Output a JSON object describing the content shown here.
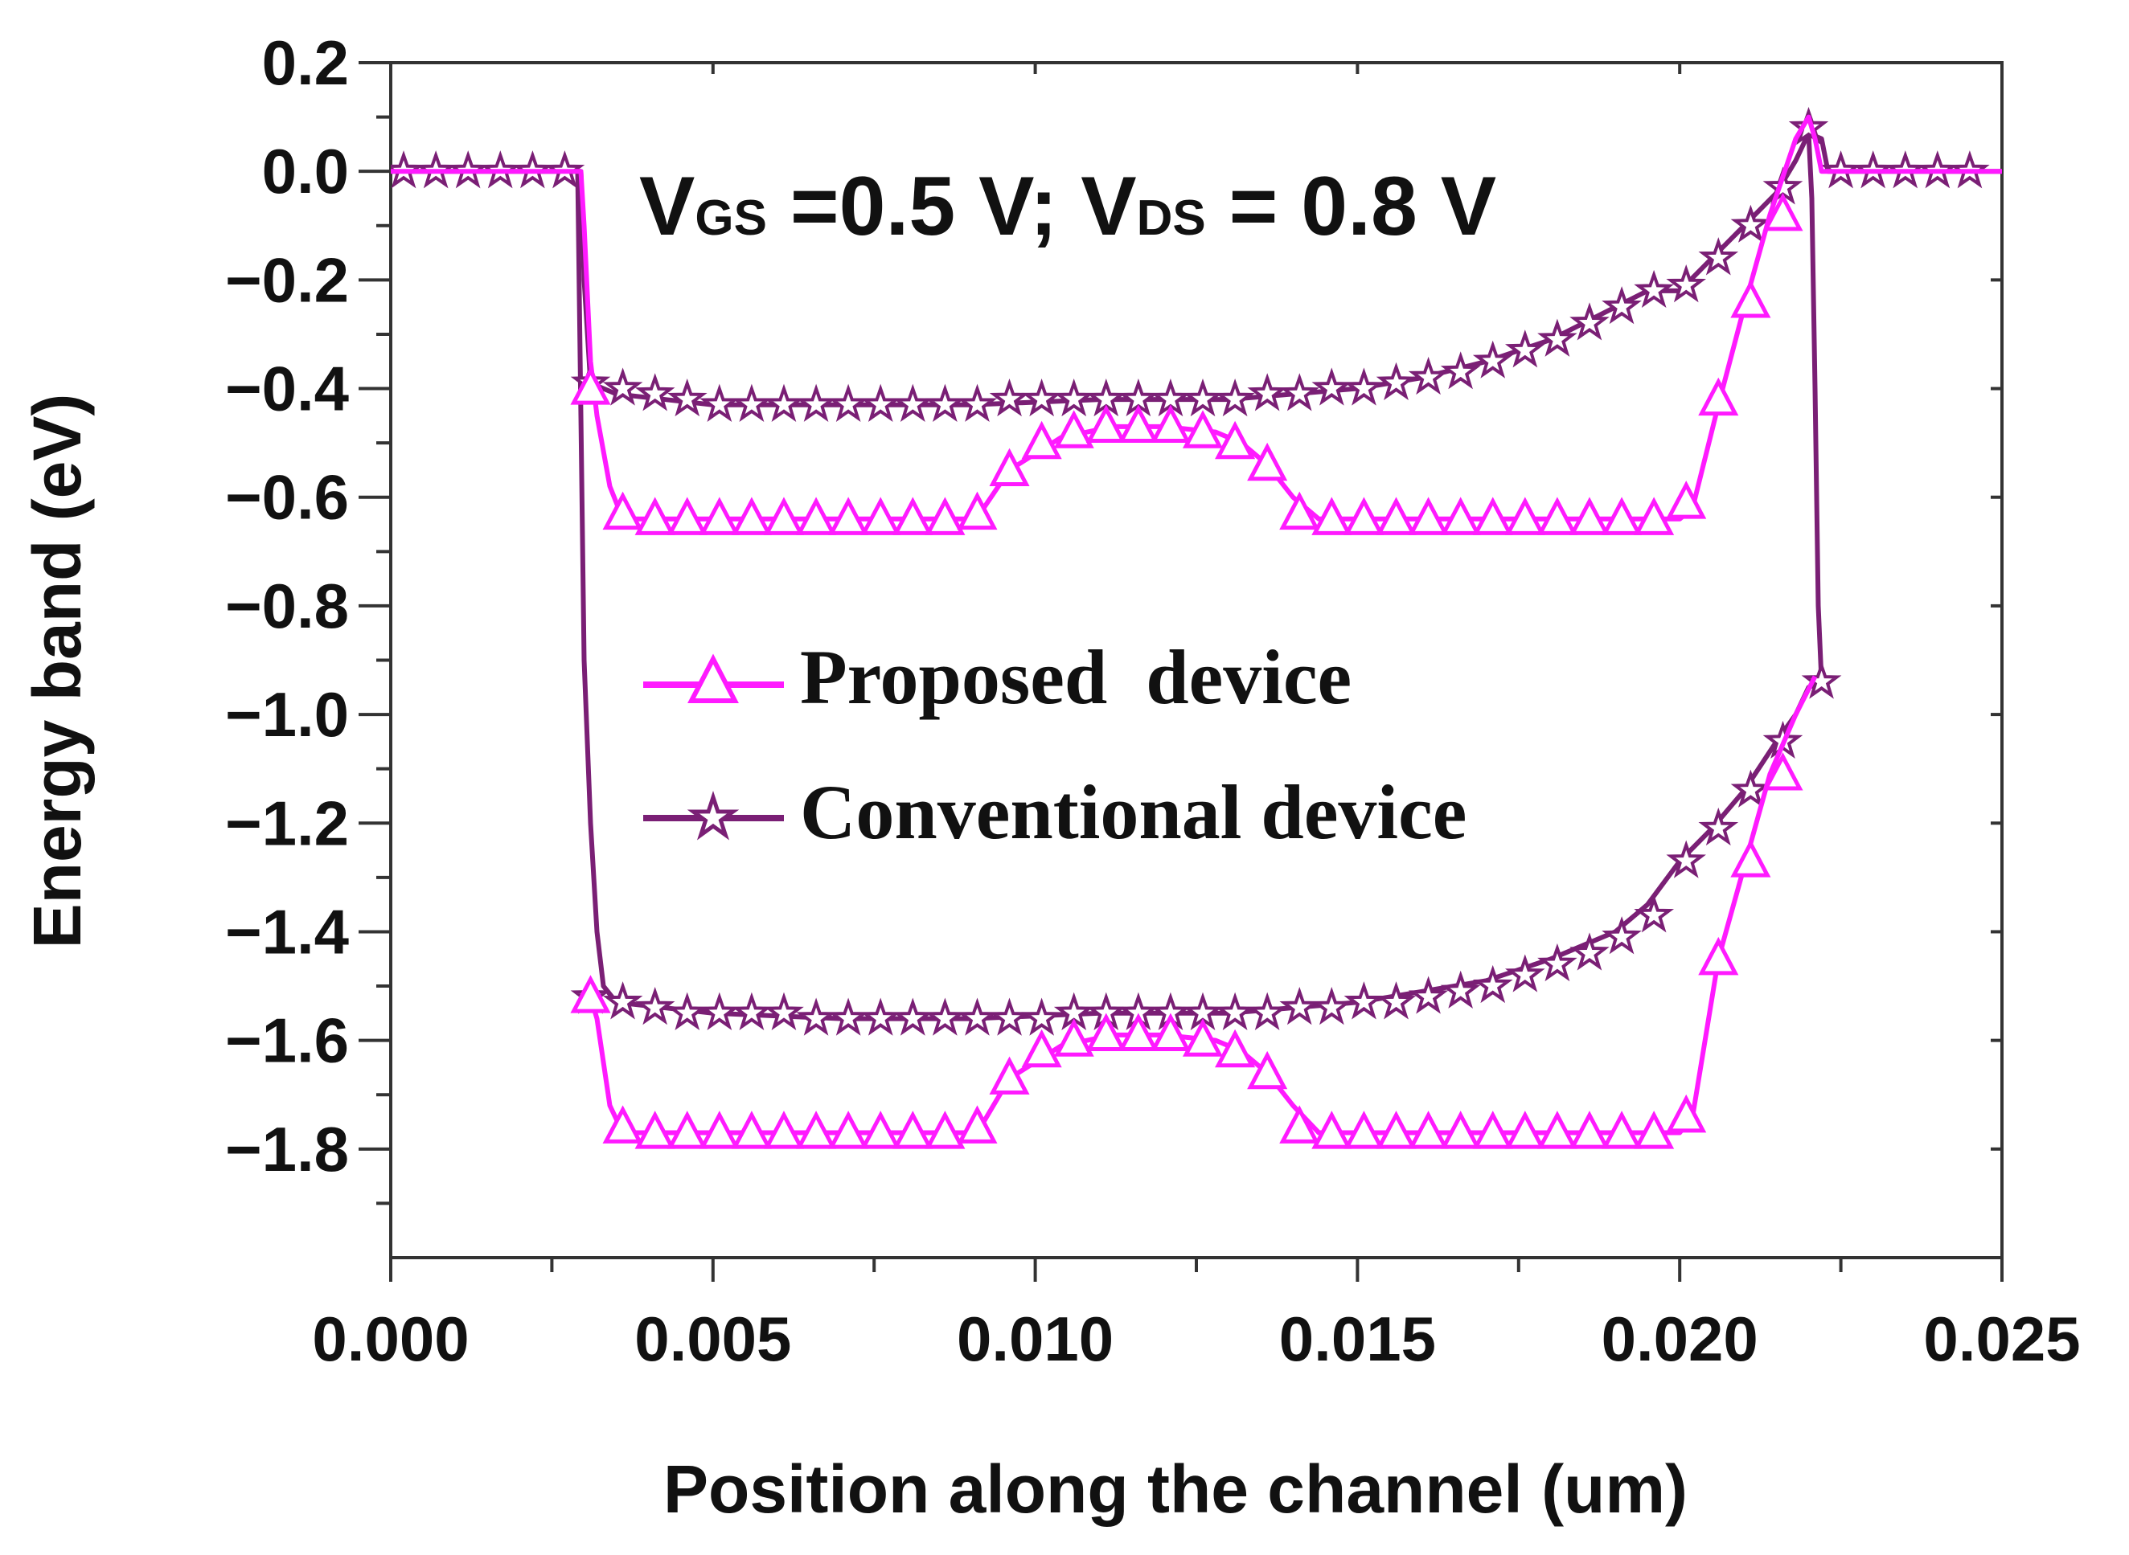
{
  "chart_data": {
    "type": "line",
    "title": "",
    "xlabel": "Position along the channel (um)",
    "ylabel": "Energy band (eV)",
    "xlim": [
      0,
      0.025
    ],
    "ylim": [
      -2.0,
      0.2
    ],
    "x_ticks": [
      "0.000",
      "0.005",
      "0.010",
      "0.015",
      "0.020",
      "0.025"
    ],
    "y_ticks": [
      "0.2",
      "0.0",
      "−0.2",
      "−0.4",
      "−0.6",
      "−0.8",
      "−1.0",
      "−1.2",
      "−1.4",
      "−1.6",
      "−1.8"
    ],
    "annotation": {
      "v1": "V",
      "v1_sub": "GS",
      "v1_val": " =0.5 V; ",
      "v2": "V",
      "v2_sub": "DS",
      "v2_val": " = 0.8 V"
    },
    "series": [
      {
        "name": "Proposed  device",
        "color": "#ff1aff",
        "marker": "triangle",
        "segments": [
          {
            "x": [
              0,
              0.0029,
              0.00295,
              0.003,
              0.0031,
              0.0032,
              0.0034,
              0.0036,
              0.009,
              0.0092,
              0.0096,
              0.0104,
              0.0112,
              0.012,
              0.0128,
              0.0132,
              0.0136,
              0.014,
              0.0144,
              0.02,
              0.0202,
              0.0206,
              0.021,
              0.0214,
              0.0218,
              0.022,
              0.0221,
              0.0222,
              0.0225,
              0.025
            ],
            "y": [
              0,
              0,
              0,
              -0.1,
              -0.35,
              -0.45,
              -0.58,
              -0.64,
              -0.64,
              -0.62,
              -0.55,
              -0.49,
              -0.47,
              -0.47,
              -0.48,
              -0.5,
              -0.54,
              -0.6,
              -0.64,
              -0.64,
              -0.62,
              -0.43,
              -0.25,
              -0.08,
              0.06,
              0.1,
              0.06,
              0.0,
              0,
              0
            ]
          },
          {
            "x": [
              0.003,
              0.0031,
              0.0032,
              0.0034,
              0.0036,
              0.009,
              0.0092,
              0.0096,
              0.0104,
              0.0112,
              0.012,
              0.0128,
              0.0132,
              0.0136,
              0.014,
              0.0144,
              0.02,
              0.0202,
              0.0206,
              0.021,
              0.0214,
              0.0218,
              0.0221
            ],
            "y": [
              -1.52,
              -1.52,
              -1.56,
              -1.72,
              -1.77,
              -1.77,
              -1.75,
              -1.67,
              -1.61,
              -1.59,
              -1.59,
              -1.6,
              -1.62,
              -1.66,
              -1.72,
              -1.77,
              -1.77,
              -1.74,
              -1.45,
              -1.28,
              -1.11,
              -1.0,
              -0.93
            ]
          }
        ],
        "markers": [
          {
            "x": [
              0.0031,
              0.0036,
              0.0041,
              0.0046,
              0.0051,
              0.0056,
              0.0061,
              0.0066,
              0.0071,
              0.0076,
              0.0081,
              0.0086,
              0.0091,
              0.0096,
              0.0101,
              0.0106,
              0.0111,
              0.0116,
              0.0121,
              0.0126,
              0.0131,
              0.0136,
              0.0141,
              0.0146,
              0.0151,
              0.0156,
              0.0161,
              0.0166,
              0.0171,
              0.0176,
              0.0181,
              0.0186,
              0.0191,
              0.0196,
              0.0201,
              0.0206,
              0.0211,
              0.0216
            ],
            "y": [
              -0.4,
              -0.63,
              -0.64,
              -0.64,
              -0.64,
              -0.64,
              -0.64,
              -0.64,
              -0.64,
              -0.64,
              -0.64,
              -0.64,
              -0.63,
              -0.55,
              -0.5,
              -0.48,
              -0.47,
              -0.47,
              -0.47,
              -0.48,
              -0.5,
              -0.54,
              -0.63,
              -0.64,
              -0.64,
              -0.64,
              -0.64,
              -0.64,
              -0.64,
              -0.64,
              -0.64,
              -0.64,
              -0.64,
              -0.64,
              -0.61,
              -0.42,
              -0.24,
              -0.08
            ]
          },
          {
            "x": [
              0.0031,
              0.0036,
              0.0041,
              0.0046,
              0.0051,
              0.0056,
              0.0061,
              0.0066,
              0.0071,
              0.0076,
              0.0081,
              0.0086,
              0.0091,
              0.0096,
              0.0101,
              0.0106,
              0.0111,
              0.0116,
              0.0121,
              0.0126,
              0.0131,
              0.0136,
              0.0141,
              0.0146,
              0.0151,
              0.0156,
              0.0161,
              0.0166,
              0.0171,
              0.0176,
              0.0181,
              0.0186,
              0.0191,
              0.0196,
              0.0201,
              0.0206,
              0.0211,
              0.0216
            ],
            "y": [
              -1.52,
              -1.76,
              -1.77,
              -1.77,
              -1.77,
              -1.77,
              -1.77,
              -1.77,
              -1.77,
              -1.77,
              -1.77,
              -1.77,
              -1.76,
              -1.67,
              -1.62,
              -1.6,
              -1.59,
              -1.59,
              -1.59,
              -1.6,
              -1.62,
              -1.66,
              -1.76,
              -1.77,
              -1.77,
              -1.77,
              -1.77,
              -1.77,
              -1.77,
              -1.77,
              -1.77,
              -1.77,
              -1.77,
              -1.77,
              -1.74,
              -1.45,
              -1.27,
              -1.11
            ]
          }
        ]
      },
      {
        "name": "Conventional device",
        "color": "#7a1f75",
        "marker": "star",
        "segments": [
          {
            "x": [
              0,
              0.0029,
              0.00295,
              0.003,
              0.0031,
              0.0035,
              0.005,
              0.007,
              0.009,
              0.011,
              0.013,
              0.015,
              0.016,
              0.017,
              0.018,
              0.019,
              0.0195,
              0.02,
              0.0205,
              0.021,
              0.0215,
              0.0218,
              0.022,
              0.0222,
              0.0223,
              0.0225,
              0.025
            ],
            "y": [
              0,
              0,
              0,
              -0.2,
              -0.39,
              -0.41,
              -0.43,
              -0.43,
              -0.43,
              -0.42,
              -0.42,
              -0.4,
              -0.38,
              -0.35,
              -0.31,
              -0.25,
              -0.22,
              -0.22,
              -0.16,
              -0.1,
              -0.04,
              0.02,
              0.07,
              0.06,
              0.0,
              0,
              0
            ]
          },
          {
            "x": [
              0.0029,
              0.00295,
              0.003,
              0.0031,
              0.0032,
              0.0033,
              0.0035,
              0.005,
              0.007,
              0.009,
              0.011,
              0.013,
              0.015,
              0.016,
              0.017,
              0.018,
              0.019,
              0.0195,
              0.02,
              0.0205,
              0.021,
              0.0215,
              0.0218,
              0.022,
              0.0222
            ],
            "y": [
              0,
              -0.45,
              -0.9,
              -1.2,
              -1.4,
              -1.5,
              -1.53,
              -1.55,
              -1.56,
              -1.56,
              -1.55,
              -1.55,
              -1.53,
              -1.51,
              -1.49,
              -1.45,
              -1.4,
              -1.35,
              -1.27,
              -1.21,
              -1.14,
              -1.05,
              -1.0,
              -0.95,
              -0.94
            ]
          },
          {
            "x": [
              0.022,
              0.02205,
              0.0221,
              0.02215,
              0.0222
            ],
            "y": [
              0.07,
              -0.05,
              -0.4,
              -0.8,
              -0.94
            ]
          }
        ],
        "markers": [
          {
            "x": [
              0.0002,
              0.0007,
              0.0012,
              0.0017,
              0.0022,
              0.0027,
              0.0031,
              0.0036,
              0.0041,
              0.0046,
              0.0051,
              0.0056,
              0.0061,
              0.0066,
              0.0071,
              0.0076,
              0.0081,
              0.0086,
              0.0091,
              0.0096,
              0.0101,
              0.0106,
              0.0111,
              0.0116,
              0.0121,
              0.0126,
              0.0131,
              0.0136,
              0.0141,
              0.0146,
              0.0151,
              0.0156,
              0.0161,
              0.0166,
              0.0171,
              0.0176,
              0.0181,
              0.0186,
              0.0191,
              0.0196,
              0.0201,
              0.0206,
              0.0211,
              0.0216,
              0.022,
              0.0225,
              0.023,
              0.0235,
              0.024,
              0.0245
            ],
            "y": [
              0,
              0,
              0,
              0,
              0,
              0,
              -0.39,
              -0.4,
              -0.41,
              -0.42,
              -0.43,
              -0.43,
              -0.43,
              -0.43,
              -0.43,
              -0.43,
              -0.43,
              -0.43,
              -0.43,
              -0.42,
              -0.42,
              -0.42,
              -0.42,
              -0.42,
              -0.42,
              -0.42,
              -0.42,
              -0.41,
              -0.41,
              -0.4,
              -0.4,
              -0.39,
              -0.38,
              -0.37,
              -0.35,
              -0.33,
              -0.31,
              -0.28,
              -0.25,
              -0.22,
              -0.21,
              -0.16,
              -0.1,
              -0.03,
              0.08,
              0,
              0,
              0,
              0,
              0
            ]
          },
          {
            "x": [
              0.0031,
              0.0036,
              0.0041,
              0.0046,
              0.0051,
              0.0056,
              0.0061,
              0.0066,
              0.0071,
              0.0076,
              0.0081,
              0.0086,
              0.0091,
              0.0096,
              0.0101,
              0.0106,
              0.0111,
              0.0116,
              0.0121,
              0.0126,
              0.0131,
              0.0136,
              0.0141,
              0.0146,
              0.0151,
              0.0156,
              0.0161,
              0.0166,
              0.0171,
              0.0176,
              0.0181,
              0.0186,
              0.0191,
              0.0196,
              0.0201,
              0.0206,
              0.0211,
              0.0216,
              0.0222
            ],
            "y": [
              -1.52,
              -1.53,
              -1.54,
              -1.55,
              -1.55,
              -1.55,
              -1.55,
              -1.56,
              -1.56,
              -1.56,
              -1.56,
              -1.56,
              -1.56,
              -1.56,
              -1.56,
              -1.55,
              -1.55,
              -1.55,
              -1.55,
              -1.55,
              -1.55,
              -1.55,
              -1.54,
              -1.54,
              -1.53,
              -1.53,
              -1.52,
              -1.51,
              -1.5,
              -1.48,
              -1.46,
              -1.44,
              -1.41,
              -1.37,
              -1.27,
              -1.21,
              -1.14,
              -1.05,
              -0.94
            ]
          }
        ]
      }
    ]
  }
}
